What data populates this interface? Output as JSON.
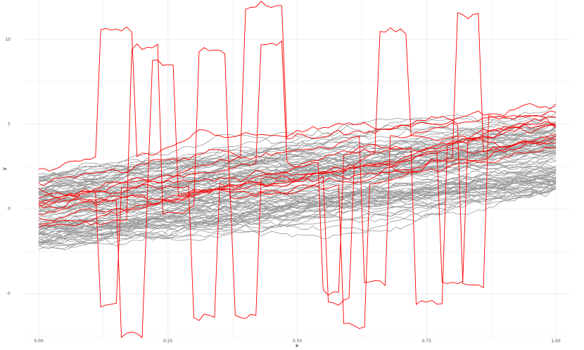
{
  "chart_data": {
    "type": "line",
    "title": "",
    "xlabel": "x",
    "ylabel": "y",
    "xlim": [
      0,
      1
    ],
    "ylim": [
      -7.5,
      12
    ],
    "x_ticks": [
      "0.00",
      "0.25",
      "0.50",
      "0.75",
      "1.00"
    ],
    "y_ticks": [
      "-5",
      "0",
      "5",
      "10"
    ],
    "grid": true,
    "legend": "none",
    "colors": {
      "background": "#ffffff",
      "grid": "#ebebeb",
      "normal_series": "#999999",
      "outlier_series": "#ff0000"
    },
    "normal_series": {
      "count": 100,
      "x_step": 0.01,
      "start_range": [
        -2.3,
        1.9
      ],
      "end_range": [
        1.2,
        6.4
      ],
      "mean_slope": 3.3
    },
    "outlier_series": [
      {
        "start": 2.1,
        "end": 4.8,
        "spikes": [
          {
            "x0": 0.12,
            "x1": 0.18,
            "value": 10.6
          }
        ]
      },
      {
        "start": 0.3,
        "end": 6.2,
        "spikes": [
          {
            "x0": 0.4,
            "x1": 0.47,
            "value": 11.9
          }
        ]
      },
      {
        "start": -1.2,
        "end": 5.0,
        "spikes": [
          {
            "x0": 0.18,
            "x1": 0.23,
            "value": 9.5
          },
          {
            "x0": 0.31,
            "x1": 0.36,
            "value": 9.3
          }
        ]
      },
      {
        "start": 0.0,
        "end": 4.3,
        "spikes": [
          {
            "x0": 0.22,
            "x1": 0.26,
            "value": 8.6
          }
        ]
      },
      {
        "start": 0.5,
        "end": 5.4,
        "spikes": [
          {
            "x0": 0.43,
            "x1": 0.47,
            "value": 9.8
          },
          {
            "x0": 0.66,
            "x1": 0.71,
            "value": 10.5
          }
        ]
      },
      {
        "start": -0.5,
        "end": 4.4,
        "spikes": [
          {
            "x0": 0.81,
            "x1": 0.85,
            "value": 11.4
          }
        ]
      },
      {
        "start": 1.0,
        "end": 3.9,
        "spikes": [
          {
            "x0": 0.12,
            "x1": 0.15,
            "value": -5.7
          },
          {
            "x0": 0.3,
            "x1": 0.34,
            "value": -6.3
          }
        ]
      },
      {
        "start": -0.3,
        "end": 4.1,
        "spikes": [
          {
            "x0": 0.16,
            "x1": 0.2,
            "value": -7.4
          },
          {
            "x0": 0.38,
            "x1": 0.42,
            "value": -6.3
          }
        ]
      },
      {
        "start": 0.7,
        "end": 5.0,
        "spikes": [
          {
            "x0": 0.55,
            "x1": 0.58,
            "value": -4.9
          },
          {
            "x0": 0.73,
            "x1": 0.78,
            "value": -5.5
          }
        ]
      },
      {
        "start": -0.8,
        "end": 4.9,
        "spikes": [
          {
            "x0": 0.56,
            "x1": 0.6,
            "value": -5.5
          },
          {
            "x0": 0.78,
            "x1": 0.82,
            "value": -4.4
          }
        ]
      },
      {
        "start": 0.2,
        "end": 3.6,
        "spikes": [
          {
            "x0": 0.59,
            "x1": 0.63,
            "value": -6.9
          }
        ]
      },
      {
        "start": 1.4,
        "end": 5.7,
        "spikes": [
          {
            "x0": 0.63,
            "x1": 0.67,
            "value": -4.3
          },
          {
            "x0": 0.82,
            "x1": 0.86,
            "value": -4.5
          }
        ]
      }
    ]
  }
}
